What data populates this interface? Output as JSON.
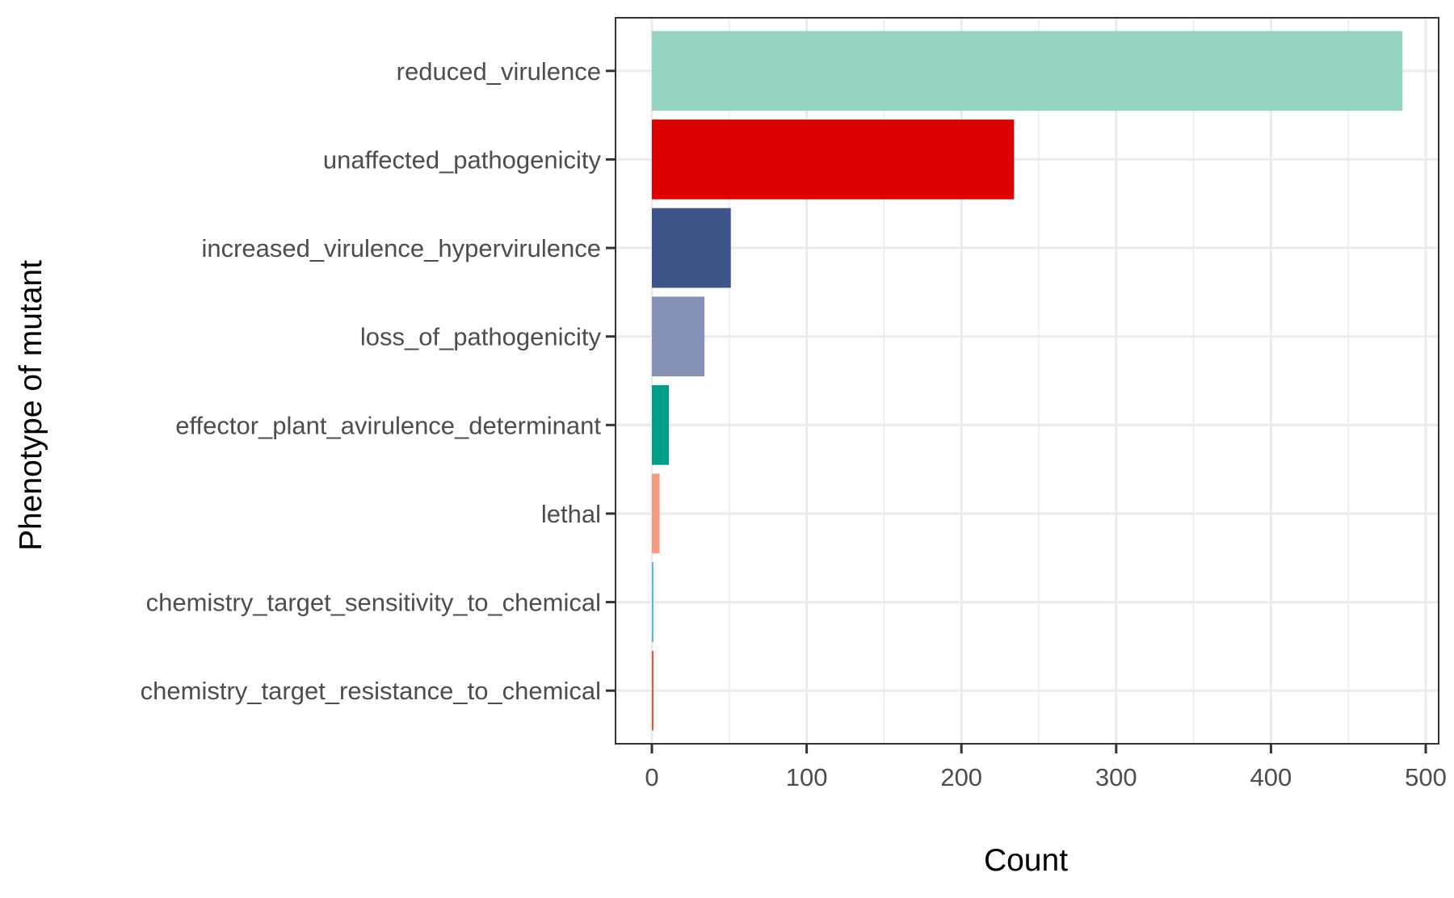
{
  "chart_data": {
    "type": "bar",
    "orientation": "horizontal",
    "title": "",
    "xlabel": "Count",
    "ylabel": "Phenotype of mutant",
    "xlim": [
      0,
      500
    ],
    "xticks": [
      0,
      100,
      200,
      300,
      400,
      500
    ],
    "grid": true,
    "legend": "none",
    "categories": [
      "reduced_virulence",
      "unaffected_pathogenicity",
      "increased_virulence_hypervirulence",
      "loss_of_pathogenicity",
      "effector_plant_avirulence_determinant",
      "lethal",
      "chemistry_target_sensitivity_to_chemical",
      "chemistry_target_resistance_to_chemical"
    ],
    "values": [
      485,
      234,
      51,
      34,
      11,
      5,
      1,
      1
    ],
    "colors": [
      "#93D2C1",
      "#DC0000",
      "#3C5488",
      "#8491B4",
      "#00A087",
      "#F39B7F",
      "#4DBBD5",
      "#E64B35"
    ]
  }
}
